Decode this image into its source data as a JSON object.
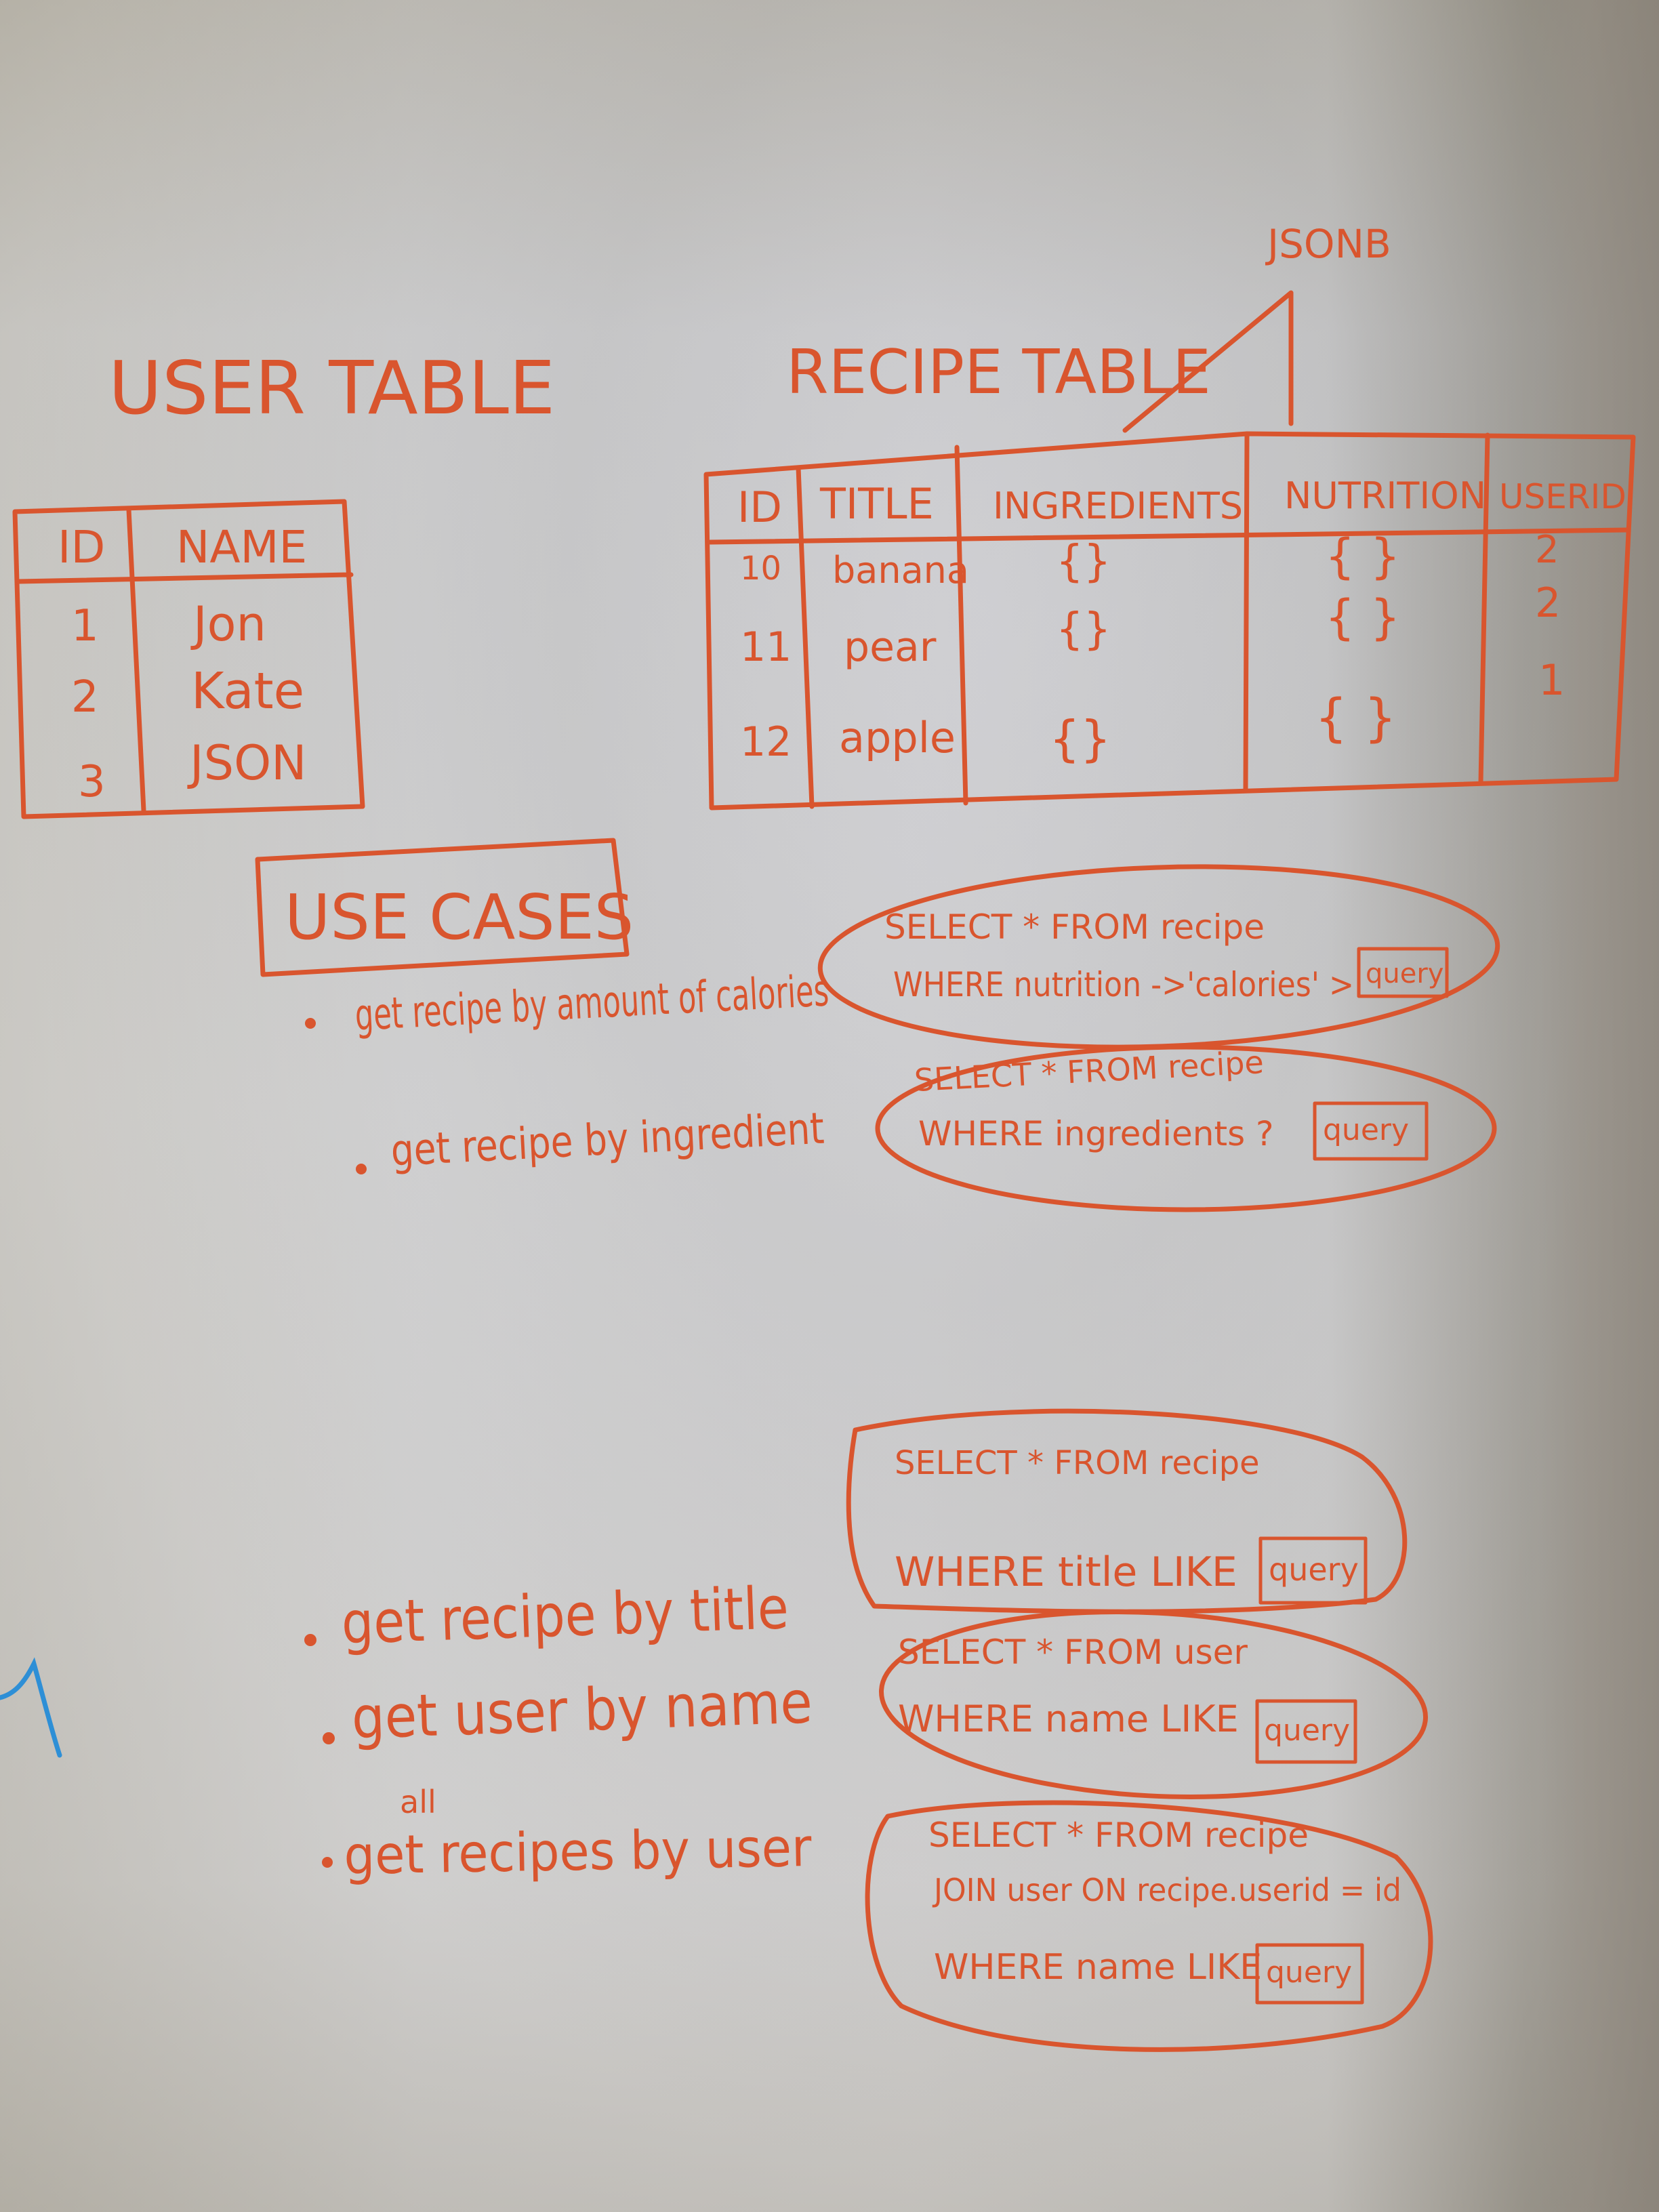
{
  "jsonb_label": "JSONB",
  "user_table": {
    "title": "USER TABLE",
    "headers": [
      "ID",
      "NAME"
    ],
    "rows": [
      [
        "1",
        "Jon"
      ],
      [
        "2",
        "Kate"
      ],
      [
        "3",
        "JSON"
      ]
    ]
  },
  "recipe_table": {
    "title": "RECIPE TABLE",
    "headers": [
      "ID",
      "TITLE",
      "INGREDIENTS",
      "NUTRITION",
      "USERID"
    ],
    "rows": [
      [
        "10",
        "banana",
        "{}",
        "{ }",
        "2"
      ],
      [
        "11",
        "pear",
        "{}",
        "{ }",
        "2"
      ],
      [
        "12",
        "apple",
        "{}",
        "{ }",
        "1"
      ]
    ]
  },
  "use_cases": {
    "title": "USE CASES",
    "items": [
      {
        "label": "get recipe by amount of calories",
        "query_lines": [
          "SELECT * FROM recipe",
          "WHERE nutrition ->'calories' >"
        ],
        "placeholder": "query"
      },
      {
        "label": "get recipe by ingredient",
        "query_lines": [
          "SELECT * FROM recipe",
          "WHERE ingredients ?"
        ],
        "placeholder": "query"
      },
      {
        "label": "get recipe by title",
        "query_lines": [
          "SELECT * FROM recipe",
          "WHERE title LIKE"
        ],
        "placeholder": "query"
      },
      {
        "label": "get user by name",
        "query_lines": [
          "SELECT * FROM user",
          "WHERE name LIKE"
        ],
        "placeholder": "query"
      },
      {
        "label": "get recipes by user",
        "insert": "all",
        "query_lines": [
          "SELECT * FROM recipe",
          "JOIN user ON recipe.userid = id",
          "WHERE name LIKE"
        ],
        "placeholder": "query"
      }
    ]
  },
  "colors": {
    "marker": "#d9552e",
    "blue_marker": "#2e8fd6",
    "board": "#ececed"
  }
}
